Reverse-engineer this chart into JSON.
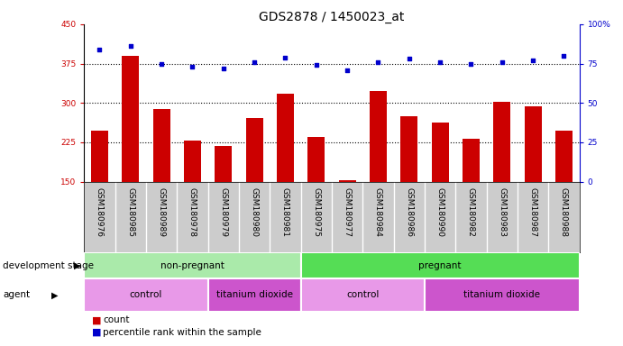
{
  "title": "GDS2878 / 1450023_at",
  "samples": [
    "GSM180976",
    "GSM180985",
    "GSM180989",
    "GSM180978",
    "GSM180979",
    "GSM180980",
    "GSM180981",
    "GSM180975",
    "GSM180977",
    "GSM180984",
    "GSM180986",
    "GSM180990",
    "GSM180982",
    "GSM180983",
    "GSM180987",
    "GSM180988"
  ],
  "counts": [
    248,
    390,
    288,
    228,
    218,
    272,
    318,
    235,
    153,
    323,
    275,
    262,
    232,
    302,
    293,
    248
  ],
  "percentiles": [
    84,
    86,
    75,
    73,
    72,
    76,
    79,
    74,
    71,
    76,
    78,
    76,
    75,
    76,
    77,
    80
  ],
  "bar_color": "#cc0000",
  "dot_color": "#0000cc",
  "ylim_left": [
    150,
    450
  ],
  "ylim_right": [
    0,
    100
  ],
  "yticks_left": [
    150,
    225,
    300,
    375,
    450
  ],
  "yticks_right": [
    0,
    25,
    50,
    75,
    100
  ],
  "ytick_labels_right": [
    "0",
    "25",
    "50",
    "75",
    "100%"
  ],
  "grid_values": [
    225,
    300,
    375
  ],
  "development_stage_groups": [
    {
      "label": "non-pregnant",
      "start": 0,
      "end": 7,
      "color": "#aaeaaa"
    },
    {
      "label": "pregnant",
      "start": 7,
      "end": 16,
      "color": "#55dd55"
    }
  ],
  "agent_groups": [
    {
      "label": "control",
      "start": 0,
      "end": 4,
      "color": "#e899e8"
    },
    {
      "label": "titanium dioxide",
      "start": 4,
      "end": 7,
      "color": "#cc55cc"
    },
    {
      "label": "control",
      "start": 7,
      "end": 11,
      "color": "#e899e8"
    },
    {
      "label": "titanium dioxide",
      "start": 11,
      "end": 16,
      "color": "#cc55cc"
    }
  ],
  "legend_count_color": "#cc0000",
  "legend_dot_color": "#0000cc",
  "background_color": "#ffffff",
  "plot_bg_color": "#ffffff",
  "xlabel_bg_color": "#cccccc",
  "title_fontsize": 10,
  "tick_fontsize": 6.5,
  "annotation_fontsize": 7.5,
  "legend_fontsize": 7.5
}
